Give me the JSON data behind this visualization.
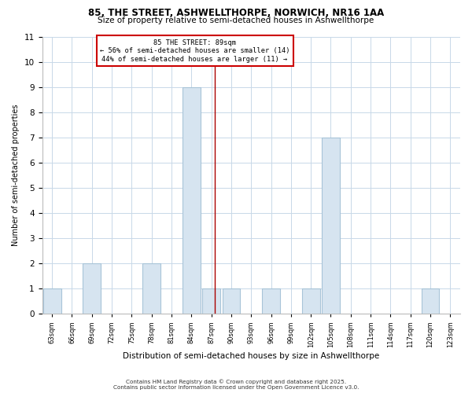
{
  "title1": "85, THE STREET, ASHWELLTHORPE, NORWICH, NR16 1AA",
  "title2": "Size of property relative to semi-detached houses in Ashwellthorpe",
  "xlabel": "Distribution of semi-detached houses by size in Ashwellthorpe",
  "ylabel": "Number of semi-detached properties",
  "bins": [
    63,
    66,
    69,
    72,
    75,
    78,
    81,
    84,
    87,
    90,
    93,
    96,
    99,
    102,
    105,
    108,
    111,
    114,
    117,
    120,
    123
  ],
  "counts": [
    1,
    0,
    2,
    0,
    0,
    2,
    0,
    9,
    1,
    1,
    0,
    1,
    0,
    1,
    7,
    0,
    0,
    0,
    0,
    1,
    0
  ],
  "bar_color": "#d6e4f0",
  "bar_edgecolor": "#a8c4d8",
  "highlight_line_color": "#aa0000",
  "property_sqm": 89,
  "annotation_title": "85 THE STREET: 89sqm",
  "annotation_line1": "← 56% of semi-detached houses are smaller (14)",
  "annotation_line2": "44% of semi-detached houses are larger (11) →",
  "annotation_box_color": "white",
  "annotation_box_edgecolor": "#cc0000",
  "ylim": [
    0,
    11
  ],
  "yticks": [
    0,
    1,
    2,
    3,
    4,
    5,
    6,
    7,
    8,
    9,
    10,
    11
  ],
  "tick_labels": [
    "63sqm",
    "66sqm",
    "69sqm",
    "72sqm",
    "75sqm",
    "78sqm",
    "81sqm",
    "84sqm",
    "87sqm",
    "90sqm",
    "93sqm",
    "96sqm",
    "99sqm",
    "102sqm",
    "105sqm",
    "108sqm",
    "111sqm",
    "114sqm",
    "117sqm",
    "120sqm",
    "123sqm"
  ],
  "bg_color": "#ffffff",
  "plot_bg_color": "#ffffff",
  "grid_color": "#c8d8e8",
  "footnote1": "Contains HM Land Registry data © Crown copyright and database right 2025.",
  "footnote2": "Contains public sector information licensed under the Open Government Licence v3.0."
}
